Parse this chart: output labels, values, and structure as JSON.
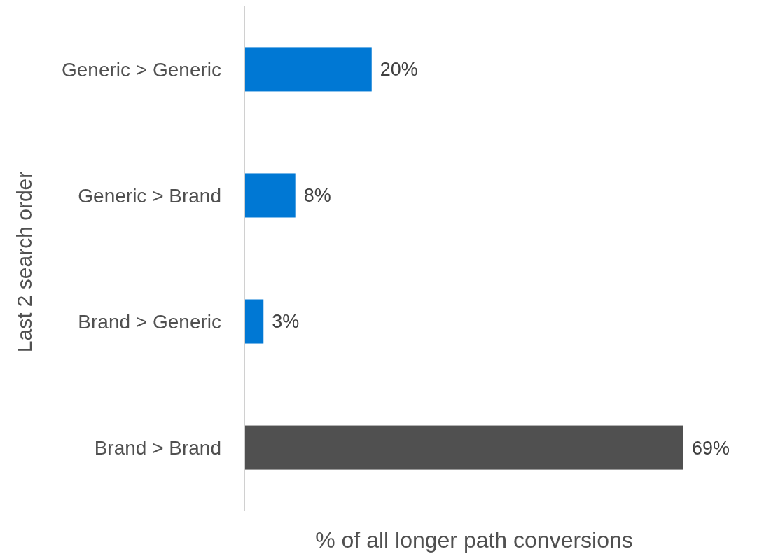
{
  "chart_data": {
    "type": "bar",
    "orientation": "horizontal",
    "xlabel": "% of all longer path conversions",
    "ylabel": "Last 2 search order",
    "categories": [
      "Generic > Generic",
      "Generic > Brand",
      "Brand > Generic",
      "Brand > Brand"
    ],
    "values": [
      20,
      8,
      3,
      69
    ],
    "colors": [
      "#0078d4",
      "#0078d4",
      "#0078d4",
      "#505050"
    ],
    "value_labels": [
      "20%",
      "8%",
      "3%",
      "69%"
    ]
  }
}
